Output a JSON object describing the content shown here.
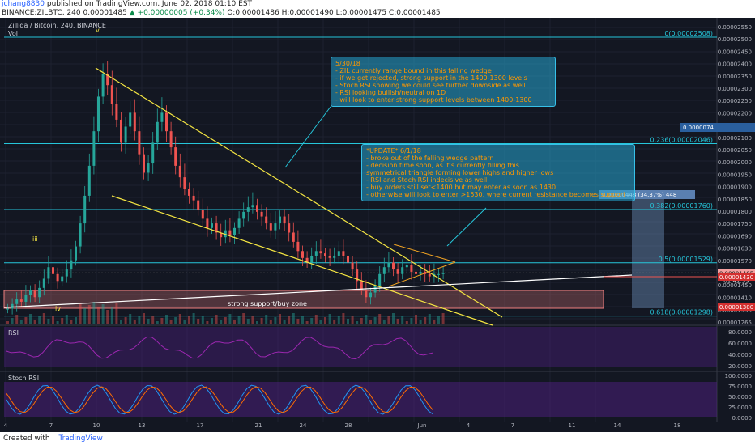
{
  "header": {
    "user": "jchang8830",
    "published_text": "published on TradingView.com, June 02, 2018 01:10 EST",
    "symbol_line": "BINANCE:ZILBTC, 240 0.00001485",
    "change": "▲ +0.00000005 (+0.34%)",
    "ohlc": "O:0.00001486 H:0.00001490 L:0.00001475 C:0.00001485"
  },
  "chart_title": "Zilliqa / Bitcoin, 240, BINANCE",
  "vol_label": "Vol",
  "notes": {
    "note1": "5/30/18\n- ZIL currently range bound in this falling wedge\n- if we get rejected, strong support in the 1400-1300 levels\n- Stoch RSI showing we could see further downside as well\n- RSI looking bullish/neutral on 1D\n- will look to enter strong support levels between 1400-1300",
    "note2": "*UPDATE* 6/1/18\n- broke out of the falling wedge pattern\n- decision time soon, as it's currently filling this\nsymmetrical triangle forming lower highs and higher lows\n- RSI and Stoch RSI indecisive as well\n- buy orders still set<1400 but may enter as soon as 1430\n- otherwise will look to enter >1530, where current resistance becomes support"
  },
  "fib_labels": [
    "0(0.00002508)",
    "0.236(0.00002046)",
    "0.382(0.00001760)",
    "0.5(0.00001529)",
    "0.618(0.00001298)"
  ],
  "support_zone_label": "strong support/buy zone",
  "measure_label": "0.00000448 (34.37%) 448",
  "measure_top_tag": "0.0000074",
  "wave_labels": [
    "iii",
    "iv",
    "v"
  ],
  "price_axis": [
    "0.00002550",
    "0.00002500",
    "0.00002450",
    "0.00002400",
    "0.00002350",
    "0.00002300",
    "0.00002250",
    "0.00002200",
    "0.00002150",
    "0.00002100",
    "0.00002050",
    "0.00002000",
    "0.00001950",
    "0.00001900",
    "0.00001850",
    "0.00001800",
    "0.00001750",
    "0.00001690",
    "0.00001630",
    "0.00001570",
    "0.00001510",
    "0.00001450",
    "0.00001410",
    "0.00001350",
    "0.00001265"
  ],
  "price_tags": {
    "current": "0.00001485",
    "timer": "01:42:33",
    "red": "0.00001430",
    "red2": "0.00001300"
  },
  "rsi": {
    "label": "RSI",
    "axis": [
      "80.0000",
      "60.0000",
      "40.0000",
      "20.0000"
    ]
  },
  "stoch": {
    "label": "Stoch RSI",
    "axis": [
      "100.0000",
      "75.0000",
      "50.0000",
      "25.0000",
      "0.0000"
    ]
  },
  "time_axis": [
    "4",
    "7",
    "10",
    "13",
    "17",
    "21",
    "24",
    "28",
    "Jun",
    "4",
    "7",
    "11",
    "14",
    "18"
  ],
  "footer": {
    "created": "Created with",
    "brand": "TradingView"
  },
  "colors": {
    "up": "#26a69a",
    "down": "#ef5350",
    "wedge": "#f5e642",
    "fib": "#26c6da",
    "zone": "#f08080",
    "note_border": "#37c1e8",
    "note_text": "#ff9800",
    "rsi": "#9c27b0",
    "stoch_k": "#2196f3",
    "stoch_d": "#ff6d00"
  },
  "chart_data": {
    "type": "candlestick",
    "title": "Zilliqa / Bitcoin, 240, BINANCE",
    "xlabel": "",
    "ylabel": "",
    "ylim": [
      1.265e-05,
      2.55e-05
    ],
    "x_ticks": [
      "4",
      "7",
      "10",
      "13",
      "17",
      "21",
      "24",
      "28",
      "Jun",
      "4",
      "7",
      "11",
      "14",
      "18"
    ],
    "close_series": [
      1.33e-05,
      1.35e-05,
      1.37e-05,
      1.36e-05,
      1.39e-05,
      1.41e-05,
      1.38e-05,
      1.42e-05,
      1.46e-05,
      1.51e-05,
      1.48e-05,
      1.45e-05,
      1.47e-05,
      1.5e-05,
      1.54e-05,
      1.6e-05,
      1.7e-05,
      1.82e-05,
      1.95e-05,
      2.1e-05,
      2.25e-05,
      2.35e-05,
      2.3e-05,
      2.22e-05,
      2.15e-05,
      2.05e-05,
      2.12e-05,
      2.18e-05,
      2.1e-05,
      2e-05,
      1.92e-05,
      1.96e-05,
      2.05e-05,
      2.14e-05,
      2.18e-05,
      2.1e-05,
      2.03e-05,
      1.95e-05,
      1.9e-05,
      1.85e-05,
      1.82e-05,
      1.8e-05,
      1.76e-05,
      1.72e-05,
      1.68e-05,
      1.7e-05,
      1.66e-05,
      1.64e-05,
      1.67e-05,
      1.65e-05,
      1.68e-05,
      1.72e-05,
      1.75e-05,
      1.77e-05,
      1.78e-05,
      1.75e-05,
      1.73e-05,
      1.7e-05,
      1.67e-05,
      1.7e-05,
      1.73e-05,
      1.7e-05,
      1.66e-05,
      1.62e-05,
      1.58e-05,
      1.55e-05,
      1.53e-05,
      1.56e-05,
      1.58e-05,
      1.57e-05,
      1.56e-05,
      1.55e-05,
      1.56e-05,
      1.58e-05,
      1.56e-05,
      1.53e-05,
      1.5e-05,
      1.45e-05,
      1.41e-05,
      1.38e-05,
      1.4e-05,
      1.43e-05,
      1.48e-05,
      1.51e-05,
      1.53e-05,
      1.5e-05,
      1.48e-05,
      1.51e-05,
      1.52e-05,
      1.49e-05,
      1.48e-05,
      1.49e-05,
      1.48e-05,
      1.47e-05,
      1.48e-05,
      1.48e-05,
      1.485e-05
    ]
  }
}
